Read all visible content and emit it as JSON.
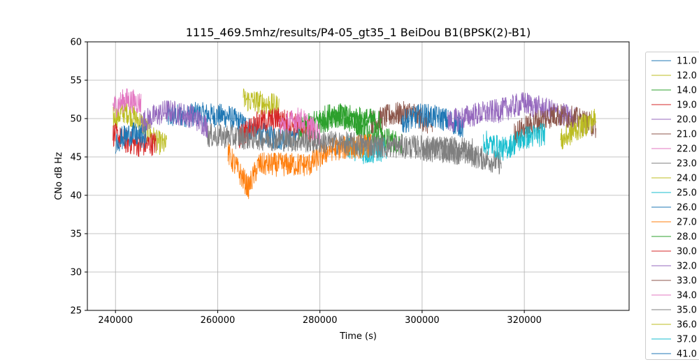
{
  "chart_data": {
    "type": "line",
    "title": "1115_469.5mhz/results/P4-05_gt35_1 BeiDou B1(BPSK(2)-B1)",
    "xlabel": "Time (s)",
    "ylabel": "CNo dB Hz",
    "xlim": [
      234500,
      340500
    ],
    "ylim": [
      25,
      60
    ],
    "xticks": [
      240000,
      260000,
      280000,
      300000,
      320000
    ],
    "yticks": [
      25,
      30,
      35,
      40,
      45,
      50,
      55,
      60
    ],
    "grid": true,
    "legend_placement": "right-outside",
    "series": [
      {
        "name": "11.0",
        "color": "#1f77b4",
        "points": [
          [
            250000,
            50.2
          ],
          [
            256000,
            50.6
          ],
          [
            262000,
            50.3
          ],
          [
            268000,
            48.1
          ],
          [
            272000,
            47.4
          ],
          [
            276000,
            48.2
          ]
        ]
      },
      {
        "name": "12.0",
        "color": "#bcbd22",
        "points": [
          [
            239500,
            50.0
          ],
          [
            242000,
            51.0
          ],
          [
            245000,
            49.5
          ],
          [
            248000,
            47.0
          ],
          [
            250000,
            46.5
          ]
        ]
      },
      {
        "name": "14.0",
        "color": "#2ca02c",
        "points": [
          [
            280000,
            49.2
          ],
          [
            284000,
            50.5
          ],
          [
            288000,
            49.0
          ],
          [
            292000,
            47.5
          ],
          [
            296000,
            46.8
          ]
        ]
      },
      {
        "name": "19.0",
        "color": "#d62728",
        "points": [
          [
            239500,
            48.0
          ],
          [
            242000,
            47.0
          ],
          [
            245000,
            46.5
          ],
          [
            248000,
            46.8
          ]
        ]
      },
      {
        "name": "20.0",
        "color": "#9467bd",
        "points": [
          [
            245000,
            49.5
          ],
          [
            250000,
            51.0
          ],
          [
            255000,
            50.3
          ],
          [
            258000,
            49.0
          ]
        ]
      },
      {
        "name": "21.0",
        "color": "#8c564b",
        "points": [
          [
            290000,
            49.5
          ],
          [
            294000,
            50.5
          ],
          [
            298000,
            50.8
          ],
          [
            302000,
            49.0
          ]
        ]
      },
      {
        "name": "22.0",
        "color": "#e377c2",
        "points": [
          [
            239500,
            51.5
          ],
          [
            242000,
            52.5
          ],
          [
            245000,
            52.0
          ]
        ]
      },
      {
        "name": "23.0",
        "color": "#7f7f7f",
        "points": [
          [
            300000,
            46.0
          ],
          [
            308000,
            45.5
          ],
          [
            315500,
            44.2
          ]
        ]
      },
      {
        "name": "24.0",
        "color": "#bcbd22",
        "points": [
          [
            265000,
            52.5
          ],
          [
            269000,
            52.0
          ],
          [
            272000,
            51.5
          ]
        ]
      },
      {
        "name": "25.0",
        "color": "#17becf",
        "points": [
          [
            285000,
            46.5
          ],
          [
            289000,
            45.5
          ],
          [
            293000,
            46.0
          ]
        ]
      },
      {
        "name": "26.0",
        "color": "#1f77b4",
        "points": [
          [
            296000,
            49.5
          ],
          [
            300000,
            50.5
          ],
          [
            304000,
            50.0
          ],
          [
            308000,
            49.0
          ]
        ]
      },
      {
        "name": "27.0",
        "color": "#ff7f0e",
        "points": [
          [
            262000,
            45.5
          ],
          [
            266000,
            41.0
          ],
          [
            268000,
            44.0
          ],
          [
            278000,
            44.0
          ],
          [
            282000,
            46.0
          ],
          [
            290000,
            46.5
          ]
        ]
      },
      {
        "name": "28.0",
        "color": "#2ca02c",
        "points": [
          [
            276000,
            48.5
          ],
          [
            282000,
            50.5
          ],
          [
            288000,
            50.0
          ],
          [
            292000,
            49.5
          ]
        ]
      },
      {
        "name": "30.0",
        "color": "#d62728",
        "points": [
          [
            264000,
            47.5
          ],
          [
            268000,
            49.5
          ],
          [
            272000,
            50.0
          ],
          [
            276000,
            49.0
          ],
          [
            279000,
            48.0
          ]
        ]
      },
      {
        "name": "32.0",
        "color": "#9467bd",
        "points": [
          [
            305000,
            49.5
          ],
          [
            310000,
            50.5
          ],
          [
            315000,
            51.0
          ],
          [
            320000,
            52.0
          ],
          [
            325000,
            51.0
          ],
          [
            330000,
            50.0
          ]
        ]
      },
      {
        "name": "33.0",
        "color": "#8c564b",
        "points": [
          [
            318000,
            48.0
          ],
          [
            322000,
            49.5
          ],
          [
            326000,
            50.5
          ],
          [
            330000,
            50.0
          ],
          [
            334000,
            49.0
          ]
        ]
      },
      {
        "name": "34.0",
        "color": "#e377c2",
        "points": [
          [
            272000,
            49.0
          ],
          [
            276000,
            50.0
          ],
          [
            280000,
            48.0
          ]
        ]
      },
      {
        "name": "35.0",
        "color": "#7f7f7f",
        "points": [
          [
            258000,
            47.8
          ],
          [
            275000,
            47.2
          ],
          [
            290000,
            46.5
          ],
          [
            310000,
            46.0
          ]
        ]
      },
      {
        "name": "36.0",
        "color": "#bcbd22",
        "points": [
          [
            327000,
            47.0
          ],
          [
            330000,
            48.5
          ],
          [
            334000,
            50.0
          ]
        ]
      },
      {
        "name": "37.0",
        "color": "#17becf",
        "points": [
          [
            312000,
            47.0
          ],
          [
            316000,
            46.0
          ],
          [
            320000,
            47.5
          ],
          [
            324000,
            48.0
          ]
        ]
      },
      {
        "name": "41.0",
        "color": "#1f77b4",
        "points": [
          [
            240000,
            47.0
          ],
          [
            243000,
            48.0
          ],
          [
            246000,
            47.5
          ]
        ]
      }
    ]
  }
}
